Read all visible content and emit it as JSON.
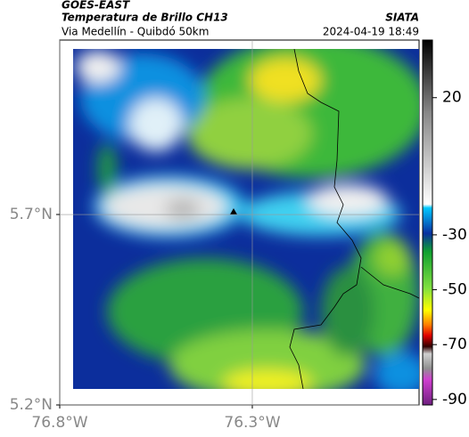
{
  "header": {
    "source": "GOES-EAST",
    "title": "Temperatura de Brillo CH13",
    "subtitle": "Via Medellín - Quibdó 50km",
    "brand": "SIATA",
    "datetime": "2024-04-19 18:49"
  },
  "map": {
    "lon_lim": [
      -76.8,
      -75.867
    ],
    "lat_lim": [
      5.2,
      6.158
    ],
    "lon_ticks": [
      {
        "value": -76.8,
        "label": "76.8°W"
      },
      {
        "value": -76.3,
        "label": "76.3°W"
      }
    ],
    "lat_ticks": [
      {
        "value": 5.7,
        "label": "5.7°N"
      },
      {
        "value": 5.2,
        "label": "5.2°N"
      }
    ],
    "grid": true
  },
  "colorbar": {
    "lim": [
      -92,
      41
    ],
    "ticks": [
      20,
      -30,
      -50,
      -70,
      -90
    ]
  }
}
